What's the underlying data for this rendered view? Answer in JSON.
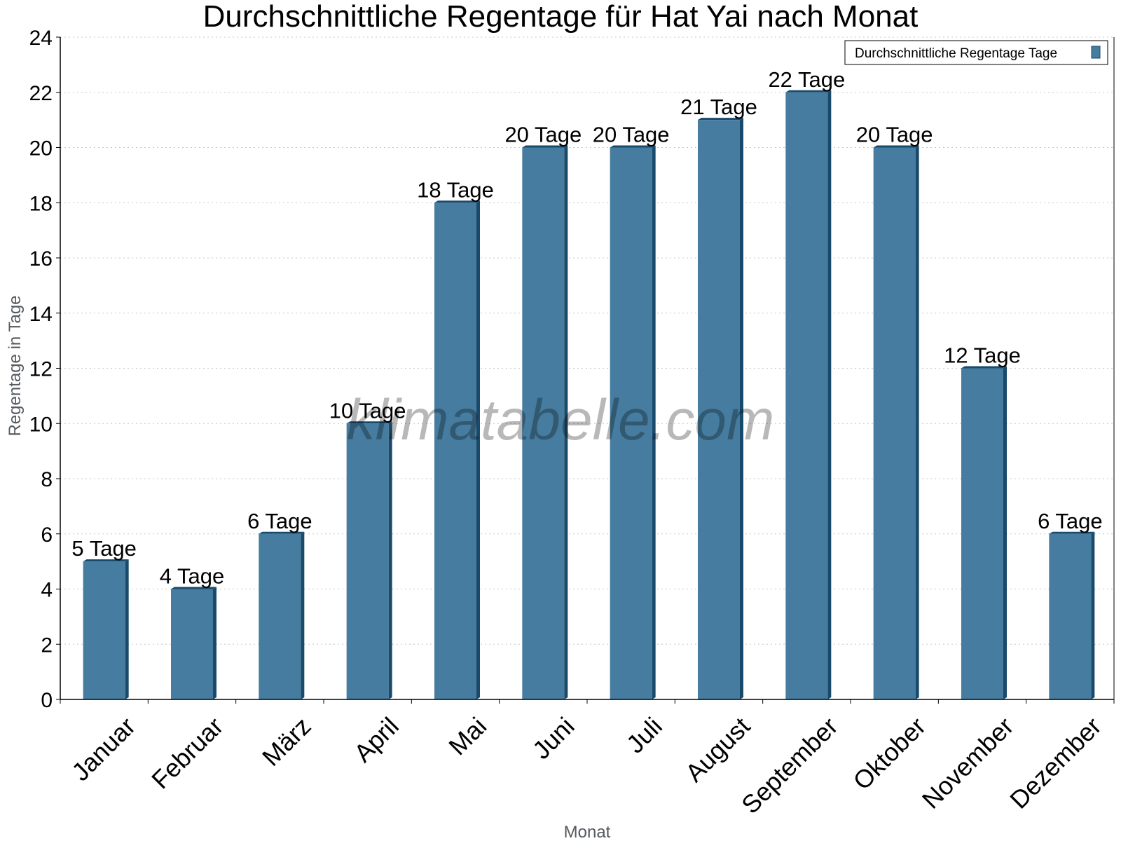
{
  "chart_data": {
    "type": "bar",
    "title": "Durchschnittliche Regentage für Hat Yai nach Monat",
    "xlabel": "Monat",
    "ylabel": "Regentage in Tage",
    "categories": [
      "Januar",
      "Februar",
      "März",
      "April",
      "Mai",
      "Juni",
      "Juli",
      "August",
      "September",
      "Oktober",
      "November",
      "Dezember"
    ],
    "series": [
      {
        "name": "Durchschnittliche Regentage Tage",
        "values": [
          5,
          4,
          6,
          10,
          18,
          20,
          20,
          21,
          22,
          20,
          12,
          6
        ],
        "data_labels": [
          "5 Tage",
          "4 Tage",
          "6 Tage",
          "10 Tage",
          "18 Tage",
          "20 Tage",
          "20 Tage",
          "21 Tage",
          "22 Tage",
          "20 Tage",
          "12 Tage",
          "6 Tage"
        ],
        "color": "#467c9f",
        "edge_color": "#1a4a6b"
      }
    ],
    "ylim": [
      0,
      24
    ],
    "yticks": [
      0,
      2,
      4,
      6,
      8,
      10,
      12,
      14,
      16,
      18,
      20,
      22,
      24
    ],
    "grid": true,
    "legend_position": "top-right"
  },
  "watermark": "klimatabelle.com"
}
